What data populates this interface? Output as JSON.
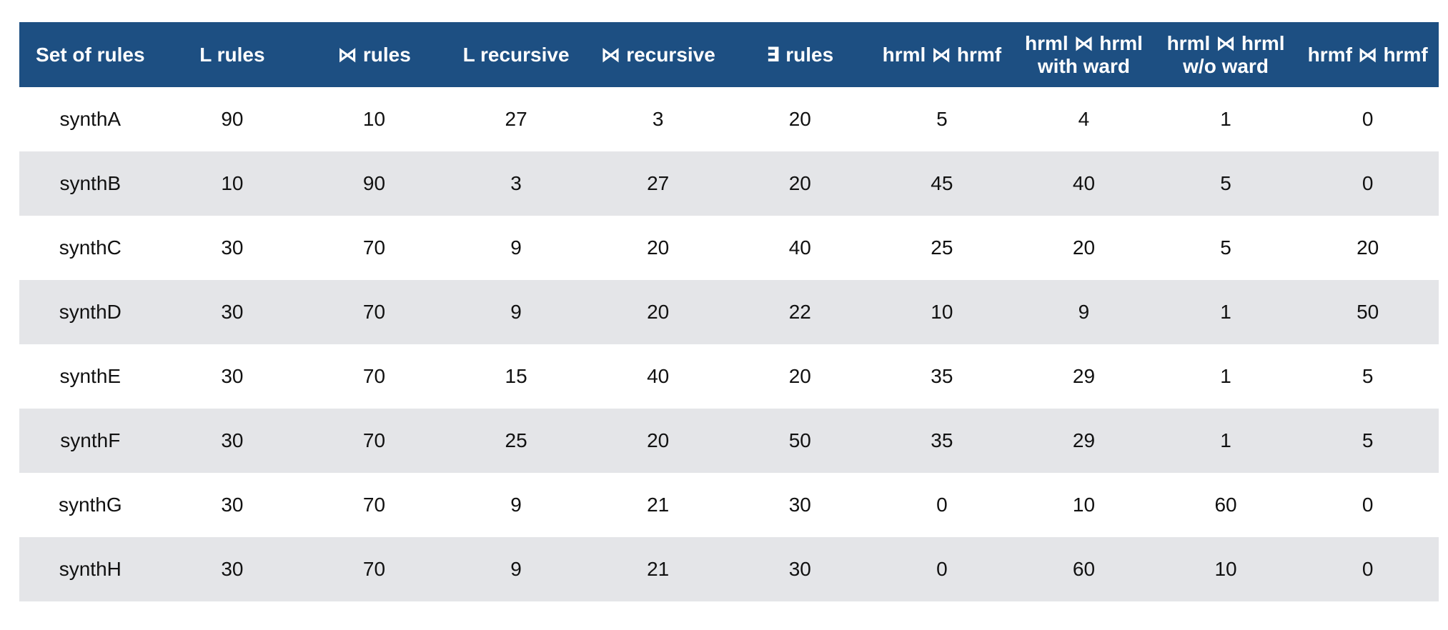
{
  "table": {
    "columns": [
      [
        "Set of rules"
      ],
      [
        "L rules"
      ],
      [
        "⋈ rules"
      ],
      [
        "L recursive"
      ],
      [
        "⋈ recursive"
      ],
      [
        "∃ rules"
      ],
      [
        "hrml ⋈ hrmf"
      ],
      [
        "hrml ⋈ hrml",
        "with ward"
      ],
      [
        "hrml ⋈ hrml",
        "w/o ward"
      ],
      [
        "hrmf ⋈ hrmf"
      ]
    ],
    "rows": [
      [
        "synthA",
        "90",
        "10",
        "27",
        "3",
        "20",
        "5",
        "4",
        "1",
        "0"
      ],
      [
        "synthB",
        "10",
        "90",
        "3",
        "27",
        "20",
        "45",
        "40",
        "5",
        "0"
      ],
      [
        "synthC",
        "30",
        "70",
        "9",
        "20",
        "40",
        "25",
        "20",
        "5",
        "20"
      ],
      [
        "synthD",
        "30",
        "70",
        "9",
        "20",
        "22",
        "10",
        "9",
        "1",
        "50"
      ],
      [
        "synthE",
        "30",
        "70",
        "15",
        "40",
        "20",
        "35",
        "29",
        "1",
        "5"
      ],
      [
        "synthF",
        "30",
        "70",
        "25",
        "20",
        "50",
        "35",
        "29",
        "1",
        "5"
      ],
      [
        "synthG",
        "30",
        "70",
        "9",
        "21",
        "30",
        "0",
        "10",
        "60",
        "0"
      ],
      [
        "synthH",
        "30",
        "70",
        "9",
        "21",
        "30",
        "0",
        "60",
        "10",
        "0"
      ]
    ]
  },
  "colors": {
    "header_bg": "#1d4f82",
    "header_text": "#ffffff",
    "stripe_bg": "#e4e5e8"
  }
}
